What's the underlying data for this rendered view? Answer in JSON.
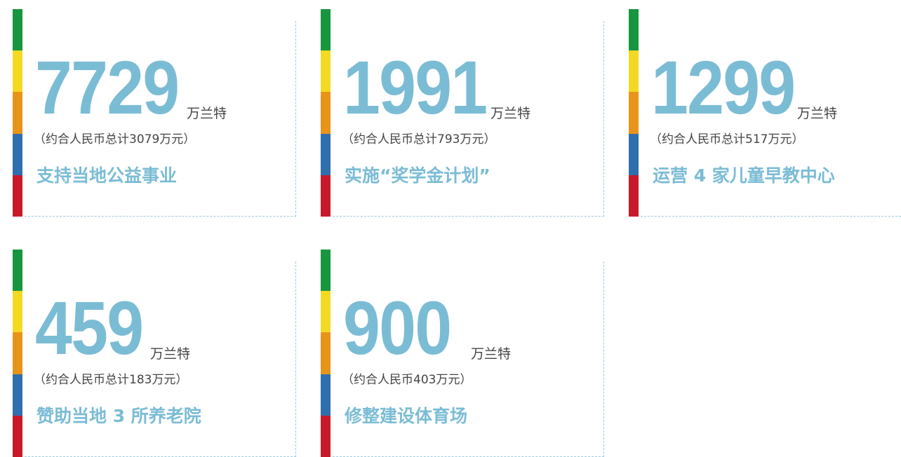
{
  "cards": [
    {
      "number": "7729",
      "unit": "万兰特",
      "note": "（约合人民币总计3079万元）",
      "description": "支持当地公益事业"
    },
    {
      "number": "1991",
      "unit": "万兰特",
      "note": "（约合人民币总计793万元）",
      "description": "实施“奖学金计划”"
    },
    {
      "number": "1299",
      "unit": "万兰特",
      "note": "（约合人民币总计517万元）",
      "description": "运营 4 家儿童早教中心"
    },
    {
      "number": "459",
      "unit": "万兰特",
      "note": "（约合人民币总计183万元）",
      "description": "赞助当地 3 所养老院"
    },
    {
      "number": "900",
      "unit": "万兰特",
      "note": "（约合人民币403万元）",
      "description": "修整建设体育场"
    }
  ]
}
